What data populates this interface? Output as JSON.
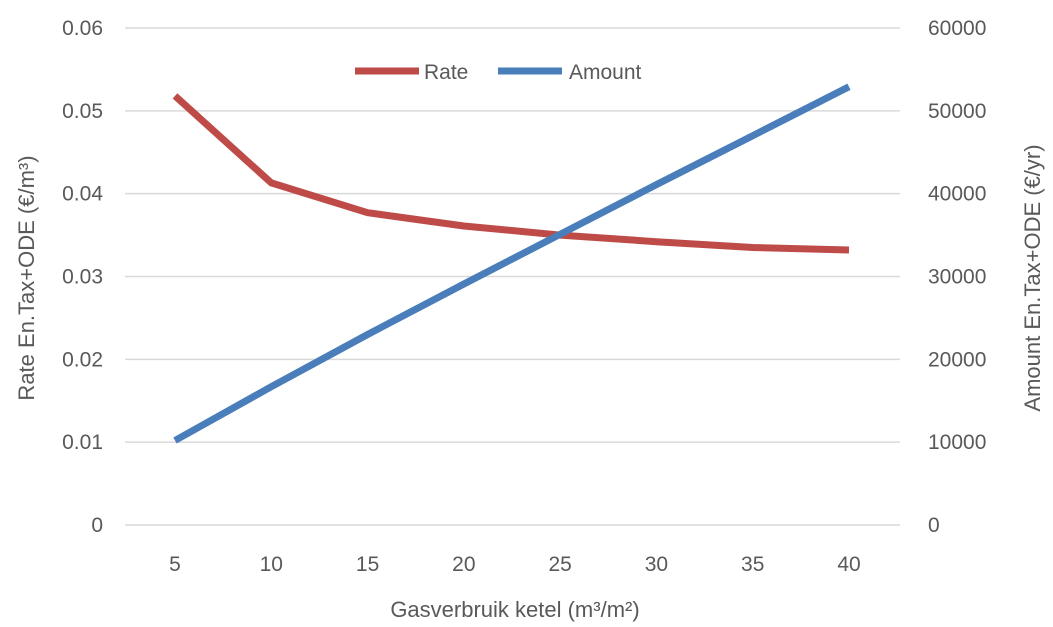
{
  "chart_data": {
    "type": "line",
    "title": "",
    "xlabel": "Gasverbruik ketel (m³/m²)",
    "ylabel_left": "Rate En.Tax+ODE (€/m³)",
    "ylabel_right": "Amount En.Tax+ODE (€/yr)",
    "x": [
      5,
      10,
      15,
      20,
      25,
      30,
      35,
      40
    ],
    "y_left_range": [
      0,
      0.06
    ],
    "y_left_ticks": [
      0,
      0.01,
      0.02,
      0.03,
      0.04,
      0.05,
      0.06
    ],
    "y_right_range": [
      0,
      60000
    ],
    "y_right_ticks": [
      0,
      10000,
      20000,
      30000,
      40000,
      50000,
      60000
    ],
    "grid": "horizontal",
    "legend_position": "top-center",
    "series": [
      {
        "name": "Rate",
        "axis": "left",
        "color": "#be4b48",
        "values": [
          0.0518,
          0.0413,
          0.0377,
          0.0361,
          0.035,
          0.0342,
          0.0335,
          0.0332
        ]
      },
      {
        "name": "Amount",
        "axis": "right",
        "color": "#4a7ebb",
        "values": [
          10200,
          16700,
          23000,
          29100,
          35100,
          41100,
          47000,
          52900
        ]
      }
    ]
  }
}
